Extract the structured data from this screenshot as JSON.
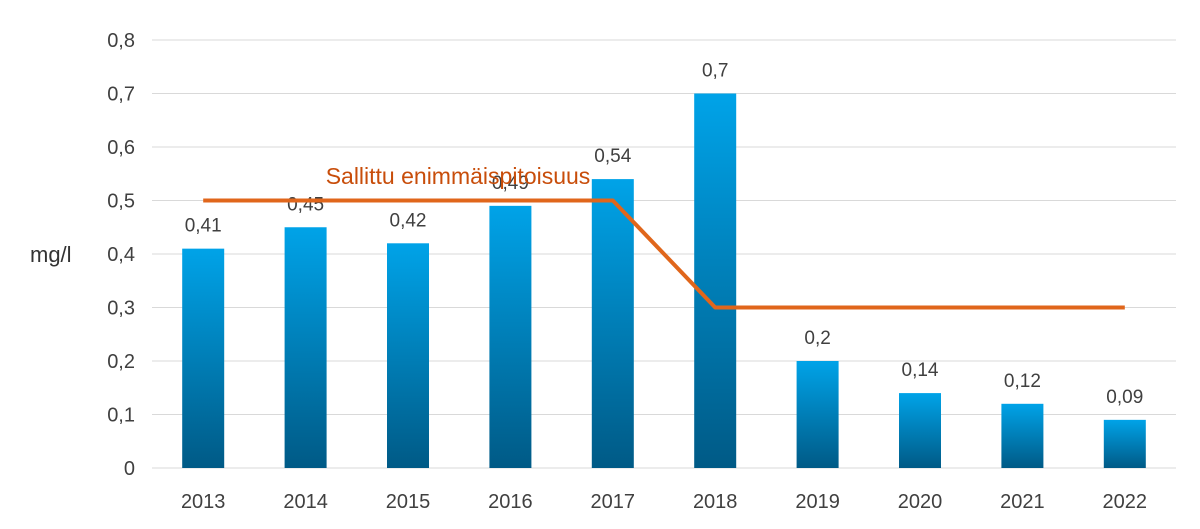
{
  "chart_data": {
    "type": "bar",
    "title": "",
    "xlabel": "",
    "ylabel": "mg/l",
    "ylim": [
      0,
      0.8
    ],
    "yticks": [
      "0",
      "0,1",
      "0,2",
      "0,3",
      "0,4",
      "0,5",
      "0,6",
      "0,7",
      "0,8"
    ],
    "grid": true,
    "categories": [
      "2013",
      "2014",
      "2015",
      "2016",
      "2017",
      "2018",
      "2019",
      "2020",
      "2021",
      "2022"
    ],
    "values": [
      0.41,
      0.45,
      0.42,
      0.49,
      0.54,
      0.7,
      0.2,
      0.14,
      0.12,
      0.09
    ],
    "data_labels": [
      "0,41",
      "0,45",
      "0,42",
      "0,49",
      "0,54",
      "0,7",
      "0,2",
      "0,14",
      "0,12",
      "0,09"
    ],
    "limit_series": {
      "name": "Sallittu enimmäispitoisuus",
      "x": [
        "2013",
        "2014",
        "2015",
        "2016",
        "2017",
        "2018",
        "2019",
        "2020",
        "2021",
        "2022"
      ],
      "values": [
        0.5,
        0.5,
        0.5,
        0.5,
        0.5,
        0.3,
        0.3,
        0.3,
        0.3,
        0.3
      ]
    },
    "colors": {
      "bar_top": "#00a3e8",
      "bar_bottom": "#005a86",
      "limit_line": "#e0661b",
      "limit_label": "#c84d0a",
      "grid": "#d9d9d9"
    }
  }
}
